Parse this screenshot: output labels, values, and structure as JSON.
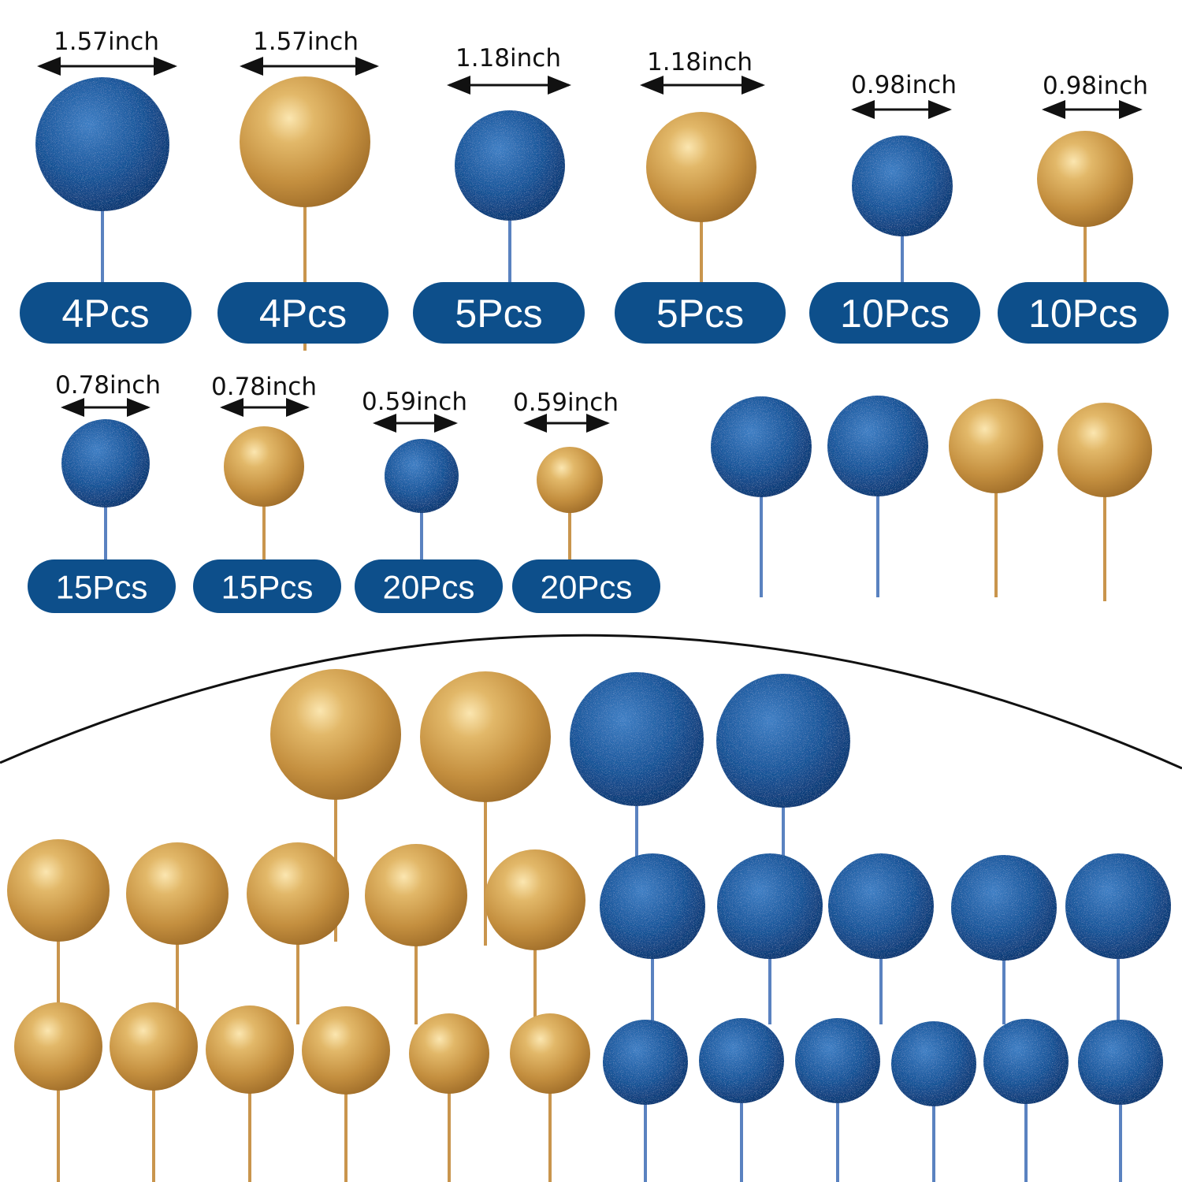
{
  "colors": {
    "blue": "#0e4f8c",
    "gold": "#c99a4c",
    "pill": "#0d4f8b",
    "text": "#111111"
  },
  "top_row": [
    {
      "size": "1.57inch",
      "count": "4Pcs",
      "color": "blue"
    },
    {
      "size": "1.57inch",
      "count": "4Pcs",
      "color": "gold"
    },
    {
      "size": "1.18inch",
      "count": "5Pcs",
      "color": "blue"
    },
    {
      "size": "1.18inch",
      "count": "5Pcs",
      "color": "gold"
    },
    {
      "size": "0.98inch",
      "count": "10Pcs",
      "color": "blue"
    },
    {
      "size": "0.98inch",
      "count": "10Pcs",
      "color": "gold"
    }
  ],
  "second_row": [
    {
      "size": "0.78inch",
      "count": "15Pcs",
      "color": "blue"
    },
    {
      "size": "0.78inch",
      "count": "15Pcs",
      "color": "gold"
    },
    {
      "size": "0.59inch",
      "count": "20Pcs",
      "color": "blue"
    },
    {
      "size": "0.59inch",
      "count": "20Pcs",
      "color": "gold"
    }
  ]
}
